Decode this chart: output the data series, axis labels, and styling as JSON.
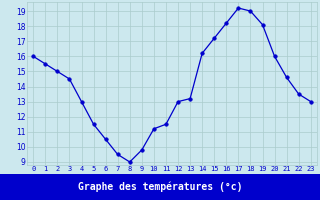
{
  "x": [
    0,
    1,
    2,
    3,
    4,
    5,
    6,
    7,
    8,
    9,
    10,
    11,
    12,
    13,
    14,
    15,
    16,
    17,
    18,
    19,
    20,
    21,
    22,
    23
  ],
  "y": [
    16,
    15.5,
    15,
    14.5,
    13,
    11.5,
    10.5,
    9.5,
    9,
    9.8,
    11.2,
    11.5,
    13,
    13.2,
    16.2,
    17.2,
    18.2,
    19.2,
    19,
    18.1,
    16,
    14.6,
    13.5,
    13
  ],
  "line_color": "#0000cc",
  "marker_color": "#0000cc",
  "bg_color": "#cce8ee",
  "grid_color": "#aacccc",
  "tick_label_color": "#0000cc",
  "bottom_bar_color": "#0000cc",
  "title_text": "Graphe des températures (°c)",
  "ylim": [
    8.8,
    19.6
  ],
  "xlim": [
    -0.5,
    23.5
  ],
  "yticks": [
    9,
    10,
    11,
    12,
    13,
    14,
    15,
    16,
    17,
    18,
    19
  ],
  "xticks": [
    0,
    1,
    2,
    3,
    4,
    5,
    6,
    7,
    8,
    9,
    10,
    11,
    12,
    13,
    14,
    15,
    16,
    17,
    18,
    19,
    20,
    21,
    22,
    23
  ]
}
